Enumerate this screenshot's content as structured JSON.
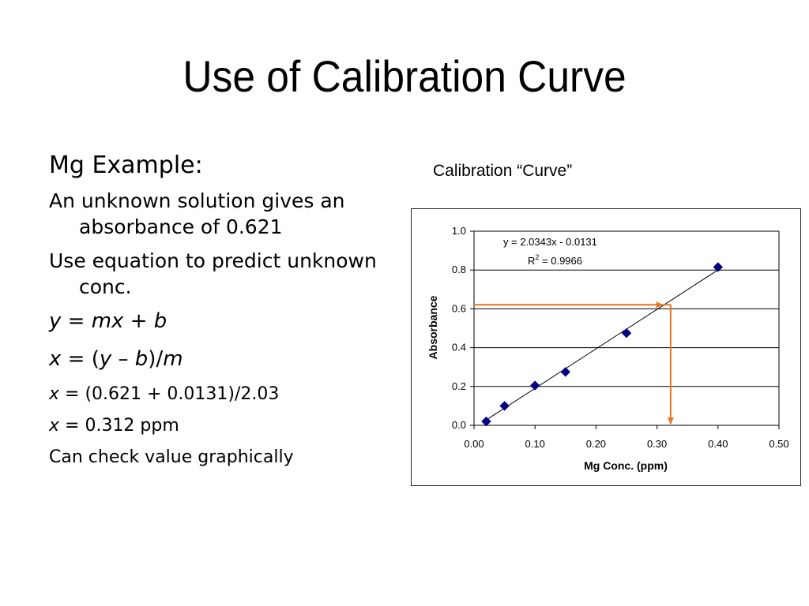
{
  "slide": {
    "title": "Use of Calibration Curve",
    "heading": "Mg Example:",
    "line1": "An unknown solution gives an absorbance of 0.621",
    "line2": "Use equation to predict unknown conc.",
    "eq1": {
      "a": "y",
      "b": " = ",
      "c": "mx",
      "d": " + ",
      "e": "b"
    },
    "eq2": {
      "a": "x",
      "b": " = (",
      "c": "y",
      "d": " – ",
      "e": "b",
      "f": ")/",
      "g": "m"
    },
    "eq3": {
      "a": "x",
      "b": " = (0.621 + 0.0131)/2.03"
    },
    "eq4": {
      "a": "x",
      "b": " = 0.312 ppm"
    },
    "line3": "Can check value graphically"
  },
  "chart_data": {
    "type": "scatter",
    "title": "Calibration “Curve”",
    "xlabel": "Mg Conc. (ppm)",
    "ylabel": "Absorbance",
    "xlim": [
      0,
      0.5
    ],
    "ylim": [
      0,
      1.0
    ],
    "xticks": [
      "0.00",
      "0.10",
      "0.20",
      "0.30",
      "0.40",
      "0.50"
    ],
    "yticks": [
      "0.0",
      "0.2",
      "0.4",
      "0.6",
      "0.8",
      "1.0"
    ],
    "grid": "horizontal",
    "points": [
      {
        "x": 0.02,
        "y": 0.02
      },
      {
        "x": 0.05,
        "y": 0.1
      },
      {
        "x": 0.1,
        "y": 0.205
      },
      {
        "x": 0.15,
        "y": 0.275
      },
      {
        "x": 0.25,
        "y": 0.475
      },
      {
        "x": 0.4,
        "y": 0.815
      }
    ],
    "trendline": {
      "slope": 2.0343,
      "intercept": -0.0131,
      "x_range": [
        0.02,
        0.4
      ]
    },
    "equation_label": "y = 2.0343x - 0.0131",
    "r2_label": {
      "r": "R",
      "sup": "2",
      "rest": " = 0.9966"
    },
    "readout": {
      "absorbance": 0.621,
      "concentration": 0.312
    },
    "colors": {
      "points": "#000080",
      "trend": "#000000",
      "arrow": "#E8761E",
      "grid": "#000000"
    }
  }
}
